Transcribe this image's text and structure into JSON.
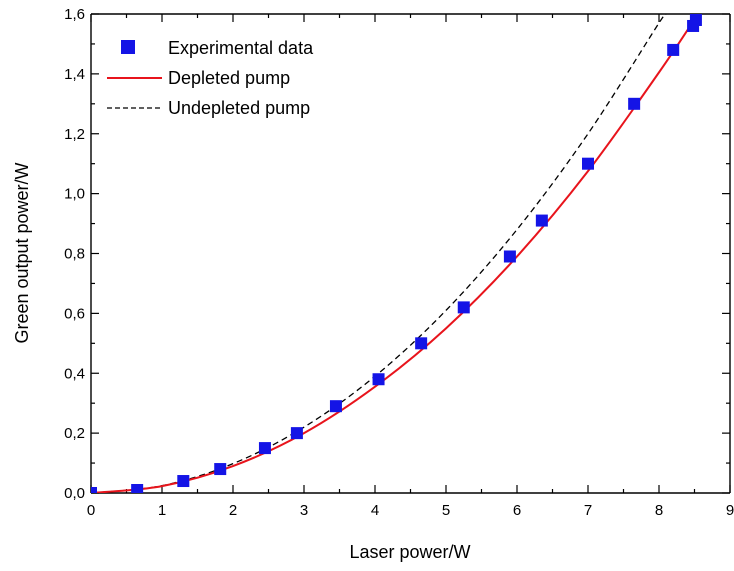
{
  "chart_data": {
    "type": "scatter",
    "xlabel": "Laser power/W",
    "ylabel": "Green output power/W",
    "xlim": [
      0,
      9
    ],
    "ylim": [
      0,
      1.6
    ],
    "x_ticks": [
      "0",
      "1",
      "2",
      "3",
      "4",
      "5",
      "6",
      "7",
      "8",
      "9"
    ],
    "y_ticks": [
      "0,0",
      "0,2",
      "0,4",
      "0,6",
      "0,8",
      "1,0",
      "1,2",
      "1,4",
      "1,6"
    ],
    "legend_position": "top-left",
    "series": [
      {
        "name": "Experimental data",
        "kind": "scatter",
        "marker": "square",
        "color": "#1414e6",
        "points": [
          [
            0.0,
            0.0
          ],
          [
            0.65,
            0.01
          ],
          [
            1.3,
            0.04
          ],
          [
            1.82,
            0.08
          ],
          [
            2.45,
            0.15
          ],
          [
            2.9,
            0.2
          ],
          [
            3.45,
            0.29
          ],
          [
            4.05,
            0.38
          ],
          [
            4.65,
            0.5
          ],
          [
            5.25,
            0.62
          ],
          [
            5.9,
            0.79
          ],
          [
            6.35,
            0.91
          ],
          [
            7.0,
            1.1
          ],
          [
            7.65,
            1.3
          ],
          [
            8.2,
            1.48
          ],
          [
            8.48,
            1.56
          ],
          [
            8.52,
            1.58
          ]
        ]
      },
      {
        "name": "Depleted pump",
        "kind": "line",
        "style": "solid",
        "color": "#e8141c",
        "points": [
          [
            0,
            0
          ],
          [
            1,
            0.023
          ],
          [
            2,
            0.09
          ],
          [
            3,
            0.2
          ],
          [
            4,
            0.355
          ],
          [
            5,
            0.55
          ],
          [
            6,
            0.79
          ],
          [
            7,
            1.075
          ],
          [
            8,
            1.405
          ],
          [
            8.55,
            1.6
          ]
        ]
      },
      {
        "name": "Undepleted pump",
        "kind": "line",
        "style": "dashed",
        "color": "#000000",
        "points": [
          [
            0,
            0
          ],
          [
            1,
            0.0245
          ],
          [
            2,
            0.098
          ],
          [
            3,
            0.22
          ],
          [
            4,
            0.39
          ],
          [
            5,
            0.61
          ],
          [
            6,
            0.88
          ],
          [
            7,
            1.2
          ],
          [
            8,
            1.57
          ],
          [
            8.1,
            1.6
          ]
        ]
      }
    ]
  }
}
